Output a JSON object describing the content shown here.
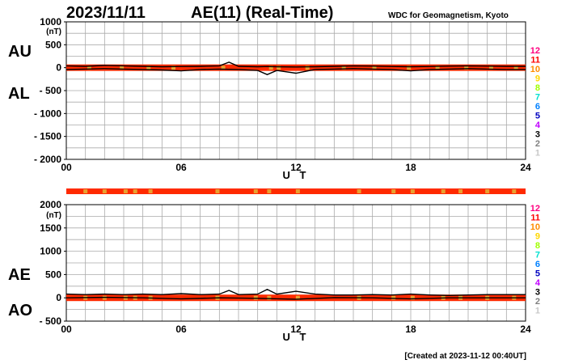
{
  "header": {
    "date": "2023/11/11",
    "title": "AE(11) (Real-Time)",
    "source": "WDC for Geomagnetism, Kyoto"
  },
  "footer": {
    "created": "[Created at 2023-11-12 00:40UT]"
  },
  "colors": {
    "bar_main": "#ff2a00",
    "bar_accent": "#e8a030",
    "trace_line": "#000000",
    "grid": "#aaaaaa"
  },
  "station_count_key": [
    {
      "label": "12",
      "color": "#ff0080"
    },
    {
      "label": "11",
      "color": "#ff0000"
    },
    {
      "label": "10",
      "color": "#ff8c00"
    },
    {
      "label": "9",
      "color": "#ffd700"
    },
    {
      "label": "8",
      "color": "#a0ff00"
    },
    {
      "label": "7",
      "color": "#00e0d0"
    },
    {
      "label": "6",
      "color": "#0080ff"
    },
    {
      "label": "5",
      "color": "#0000c0"
    },
    {
      "label": "4",
      "color": "#c000ff"
    },
    {
      "label": "3",
      "color": "#000000"
    },
    {
      "label": "2",
      "color": "#808080"
    },
    {
      "label": "1",
      "color": "#c8c8c8"
    }
  ],
  "chart_data": [
    {
      "type": "line",
      "panel": "upper",
      "labels": [
        "AU",
        "AL"
      ],
      "unit": "(nT)",
      "xlabel": "U T",
      "xlim": [
        0,
        24
      ],
      "x_ticks": [
        "00",
        "06",
        "12",
        "18",
        "24"
      ],
      "x_tick_values": [
        0,
        6,
        12,
        18,
        24
      ],
      "ylim": [
        -2000,
        1000
      ],
      "y_ticks": [
        "1000",
        "500",
        "0",
        "- 500",
        "- 1000",
        "- 1500",
        "- 2000"
      ],
      "y_tick_values": [
        1000,
        500,
        0,
        -500,
        -1000,
        -1500,
        -2000
      ],
      "grid": true,
      "series": [
        {
          "name": "AU",
          "x": [
            0,
            1,
            2,
            3,
            4,
            5,
            6,
            7,
            8,
            8.5,
            9,
            10,
            10.5,
            11,
            12,
            13,
            14,
            15,
            16,
            17,
            18,
            19,
            20,
            21,
            22,
            23,
            24
          ],
          "values": [
            40,
            30,
            50,
            40,
            30,
            20,
            25,
            30,
            40,
            120,
            30,
            20,
            25,
            20,
            15,
            20,
            30,
            40,
            35,
            25,
            20,
            25,
            35,
            40,
            35,
            30,
            30
          ]
        },
        {
          "name": "AL",
          "x": [
            0,
            1,
            2,
            3,
            4,
            5,
            6,
            7,
            8,
            9,
            10,
            10.5,
            11,
            12,
            13,
            14,
            15,
            16,
            17,
            18,
            19,
            20,
            21,
            22,
            23,
            24
          ],
          "values": [
            -40,
            -30,
            -20,
            -30,
            -40,
            -50,
            -70,
            -40,
            -30,
            -40,
            -60,
            -150,
            -60,
            -120,
            -40,
            -30,
            -20,
            -30,
            -40,
            -70,
            -40,
            -30,
            -20,
            -30,
            -40,
            -40
          ]
        }
      ],
      "station_bar_accent_hours": [
        1.2,
        2.9,
        4.3,
        5.6,
        8.2,
        10.7,
        11.1,
        12.6,
        14.5,
        16.1,
        17.9,
        19.4,
        20.9,
        22.2,
        23.5
      ]
    },
    {
      "type": "line",
      "panel": "lower",
      "labels": [
        "AE",
        "AO"
      ],
      "unit": "(nT)",
      "xlabel": "U T",
      "xlim": [
        0,
        24
      ],
      "x_ticks": [
        "00",
        "06",
        "12",
        "18",
        "24"
      ],
      "x_tick_values": [
        0,
        6,
        12,
        18,
        24
      ],
      "ylim": [
        -500,
        2000
      ],
      "y_ticks": [
        "2000",
        "1500",
        "1000",
        "500",
        "0",
        "- 500"
      ],
      "y_tick_values": [
        2000,
        1500,
        1000,
        500,
        0,
        -500
      ],
      "grid": true,
      "series": [
        {
          "name": "AE",
          "x": [
            0,
            1,
            2,
            3,
            4,
            5,
            6,
            7,
            8,
            8.5,
            9,
            10,
            10.5,
            11,
            12,
            13,
            14,
            15,
            16,
            17,
            18,
            19,
            20,
            21,
            22,
            23,
            24
          ],
          "values": [
            80,
            70,
            80,
            70,
            80,
            70,
            90,
            70,
            80,
            160,
            70,
            80,
            180,
            80,
            140,
            80,
            60,
            60,
            70,
            60,
            80,
            60,
            50,
            60,
            70,
            70,
            70
          ]
        },
        {
          "name": "AO",
          "x": [
            0,
            2,
            4,
            6,
            8,
            10,
            12,
            14,
            16,
            18,
            20,
            22,
            24
          ],
          "values": [
            0,
            10,
            0,
            -20,
            0,
            -10,
            -30,
            5,
            0,
            -20,
            0,
            0,
            0
          ]
        }
      ],
      "station_bar_accent_hours": [
        1.0,
        2.0,
        3.1,
        3.6,
        4.4,
        7.9,
        9.9,
        10.6,
        12.1,
        15.3,
        17.1,
        18.1,
        19.7,
        20.6,
        22.0,
        23.4
      ]
    }
  ]
}
